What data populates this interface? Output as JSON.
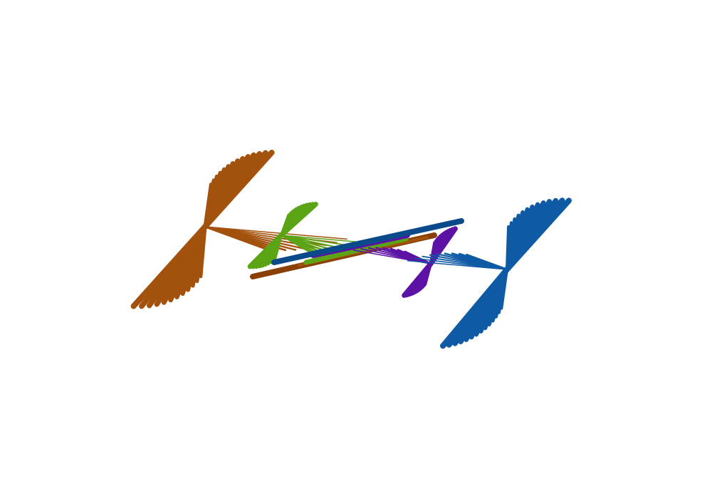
{
  "figure": {
    "description_text": "",
    "background_color": "#ffffff"
  },
  "ribbons": [
    {
      "id": "brown",
      "color": "#a3520e",
      "dark": "#8a3f05"
    },
    {
      "id": "green",
      "color": "#5aa415",
      "dark": "#3c7a0a"
    },
    {
      "id": "purple",
      "color": "#5c12a5",
      "dark": "#460b82"
    },
    {
      "id": "blue",
      "color": "#0f5aa5",
      "dark": "#0a4a8a"
    }
  ]
}
